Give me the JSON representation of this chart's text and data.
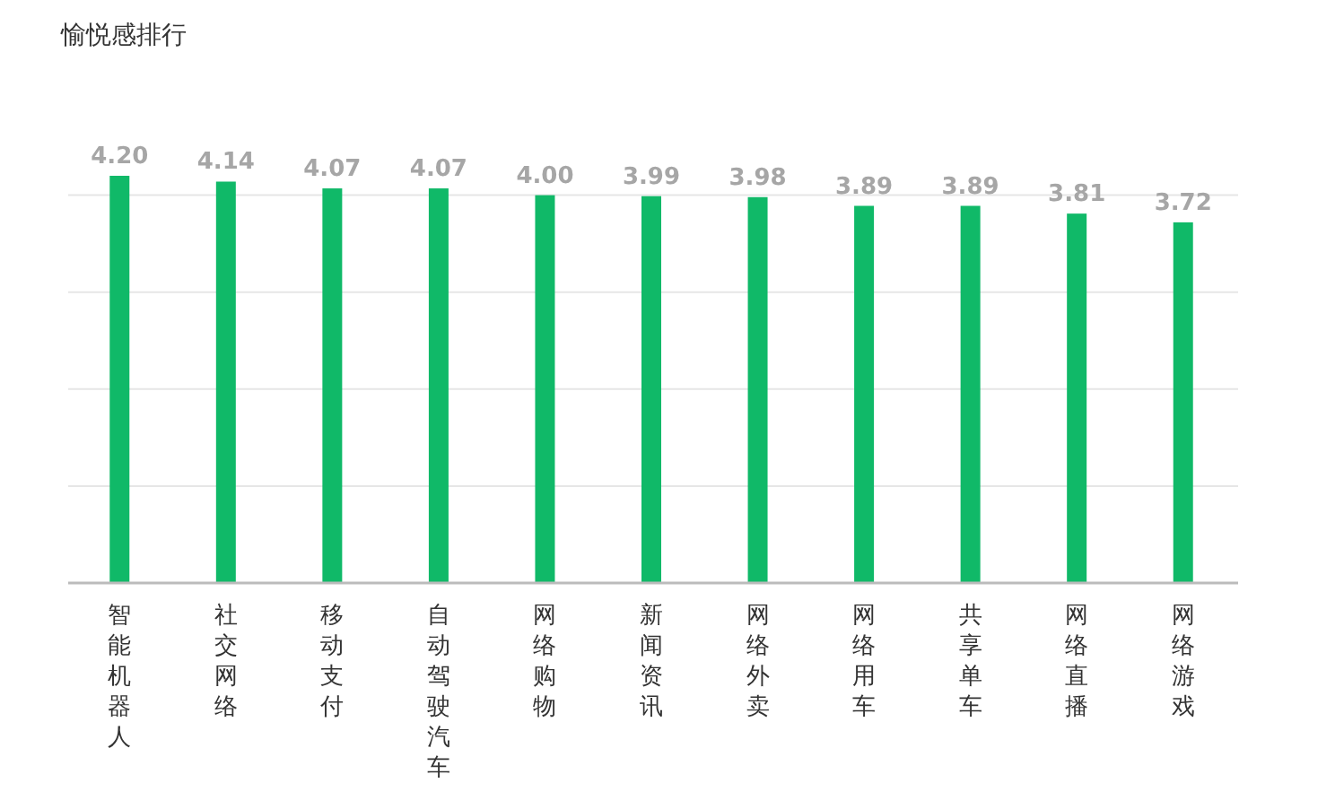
{
  "chart_data": {
    "type": "bar",
    "title": "愉悦感排行",
    "categories": [
      "智能机器人",
      "社交网络",
      "移动支付",
      "自动驾驶汽车",
      "网络购物",
      "新闻资讯",
      "网络外卖",
      "网络用车",
      "共享单车",
      "网络直播",
      "网络游戏"
    ],
    "values": [
      4.2,
      4.14,
      4.07,
      4.07,
      4.0,
      3.99,
      3.98,
      3.89,
      3.89,
      3.81,
      3.72
    ],
    "color": "#10b968",
    "value_labels": [
      "4.20",
      "4.14",
      "4.07",
      "4.07",
      "4.00",
      "3.99",
      "3.98",
      "3.89",
      "3.89",
      "3.81",
      "3.72"
    ],
    "yticks": [
      {
        "value": 0,
        "label": null
      },
      {
        "value": 1,
        "label": null
      },
      {
        "value": 2,
        "label": null
      },
      {
        "value": 3,
        "label": null
      },
      {
        "value": 4,
        "label": null
      }
    ],
    "tick_labels": "x",
    "grid": "y"
  }
}
